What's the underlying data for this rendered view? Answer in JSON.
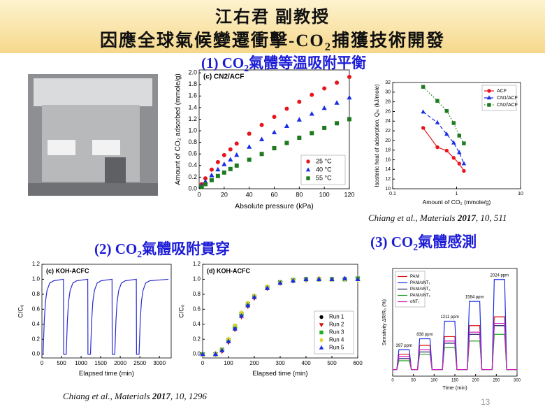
{
  "slide": {
    "presenter": "江右君 副教授",
    "title": [
      "因應全球氣候變遷衝擊-CO",
      "2",
      "捕獲技術開發"
    ],
    "sections": [
      [
        "(1) CO",
        "2",
        "氣體等溫吸附平衡"
      ],
      [
        "(2) CO",
        "2",
        "氣體吸附貫穿"
      ],
      [
        "(3) CO",
        "2",
        "氣體感測"
      ]
    ],
    "citations": [
      [
        "Chiang et al., Materials ",
        "2017",
        ", 10, 511"
      ],
      [
        "Chiang et al., Materials ",
        "2017",
        ", 10, 1296"
      ]
    ],
    "page_number": 13
  },
  "chart_data": [
    {
      "type": "scatter",
      "annotation": "(c) CN2/ACF",
      "x_label": "Absolute pressure (kPa)",
      "y_label": "Amount of CO₂ adsorbed (mmole/g)",
      "x": [
        2,
        5,
        10,
        15,
        20,
        25,
        30,
        40,
        50,
        60,
        70,
        80,
        90,
        100,
        110,
        120
      ],
      "series": [
        {
          "name": "25 °C",
          "color": "#e8141c",
          "marker": "circle",
          "values": [
            0.08,
            0.18,
            0.33,
            0.46,
            0.58,
            0.68,
            0.78,
            0.95,
            1.1,
            1.24,
            1.38,
            1.5,
            1.62,
            1.73,
            1.83,
            1.93
          ]
        },
        {
          "name": "40 °C",
          "color": "#1a2ee6",
          "marker": "triangle",
          "values": [
            0.05,
            0.12,
            0.23,
            0.33,
            0.42,
            0.5,
            0.58,
            0.72,
            0.85,
            0.97,
            1.08,
            1.19,
            1.29,
            1.39,
            1.48,
            1.57
          ]
        },
        {
          "name": "55 °C",
          "color": "#1e7a1e",
          "marker": "square",
          "values": [
            0.03,
            0.08,
            0.15,
            0.22,
            0.28,
            0.34,
            0.4,
            0.5,
            0.6,
            0.7,
            0.79,
            0.88,
            0.96,
            1.05,
            1.13,
            1.2
          ]
        }
      ],
      "xlim": [
        0,
        120
      ],
      "xticks": [
        0,
        20,
        40,
        60,
        80,
        100,
        120
      ],
      "ylim": [
        0,
        2.05
      ],
      "yticks": [
        {
          "value": 0,
          "label": "0.0"
        },
        0.2,
        0.4,
        0.6,
        0.8,
        {
          "value": 1,
          "label": "1.0"
        },
        1.2,
        1.4,
        1.6,
        1.8,
        {
          "value": 2,
          "label": "2.0"
        }
      ],
      "legend": "lower right"
    },
    {
      "type": "line",
      "x_label": "Amount of CO₂ (mmole/g)",
      "y_label": "Isosteric heat of adsorption, Qₛₜ (kJ/mole)",
      "x": [
        0.3,
        0.5,
        0.7,
        0.9,
        1.1,
        1.3
      ],
      "xscale": "log",
      "series": [
        {
          "name": "ACF",
          "color": "#e8141c",
          "marker": "circle",
          "dash": "solid",
          "values": [
            22.6,
            18.6,
            17.9,
            16.4,
            15.2,
            13.7
          ]
        },
        {
          "name": "CN1/ACF",
          "color": "#1a2ee6",
          "marker": "triangle",
          "dash": "dashed",
          "values": [
            25.9,
            23.7,
            21.3,
            19.5,
            17.5,
            15.2
          ]
        },
        {
          "name": "CN2/ACF",
          "color": "#1e7a1e",
          "marker": "square",
          "dash": "dotted",
          "values": [
            31.1,
            28.2,
            26.1,
            23.6,
            21.0,
            19.4
          ]
        }
      ],
      "xlim": [
        0.1,
        10
      ],
      "xticks": [
        0.1,
        1,
        10
      ],
      "ylim": [
        10,
        32
      ],
      "yticks": [
        10,
        12,
        14,
        16,
        18,
        20,
        22,
        24,
        26,
        28,
        30,
        32
      ],
      "legend": "upper right"
    },
    {
      "type": "line",
      "annotation": "(c) KOH-ACFC",
      "x_label": "Elapsed time (min)",
      "y_label": "C/C₀",
      "x": [
        0,
        30,
        60,
        90,
        130,
        200,
        300,
        550,
        555,
        620,
        650,
        680,
        720,
        790,
        890,
        1170,
        1175,
        1240,
        1270,
        1300,
        1340,
        1410,
        1510,
        1790,
        1795,
        1860,
        1890,
        1920,
        1960,
        2030,
        2130,
        2410,
        2415,
        2480,
        2510,
        2540,
        2580,
        2650,
        2750,
        3230
      ],
      "series": [
        {
          "color": "#2b2bd0",
          "dash": "solid",
          "values": [
            0,
            0,
            0.45,
            0.7,
            0.85,
            0.95,
            0.98,
            1.0,
            0,
            0,
            0.45,
            0.7,
            0.85,
            0.95,
            0.98,
            1.0,
            0,
            0,
            0.45,
            0.7,
            0.85,
            0.95,
            0.98,
            1.0,
            0,
            0,
            0.45,
            0.7,
            0.85,
            0.95,
            0.98,
            1.0,
            0,
            0,
            0.45,
            0.7,
            0.85,
            0.95,
            0.98,
            1.0
          ]
        }
      ],
      "xlim": [
        0,
        3300
      ],
      "xticks": [
        0,
        500,
        1000,
        1500,
        2000,
        2500,
        3000
      ],
      "ylim": [
        -0.05,
        1.2
      ],
      "yticks": [
        {
          "value": 0,
          "label": "0.0"
        },
        0.2,
        0.4,
        0.6,
        0.8,
        {
          "value": 1,
          "label": "1.0"
        },
        1.2
      ]
    },
    {
      "type": "scatter",
      "annotation": "(d) KOH-ACFC",
      "x_label": "Elapsed time (min)",
      "y_label": "C/C₀",
      "x": [
        0,
        50,
        75,
        100,
        125,
        150,
        175,
        200,
        250,
        300,
        350,
        400,
        450,
        500,
        550,
        600
      ],
      "series": [
        {
          "name": "Run 1",
          "color": "#000000",
          "marker": "circle",
          "values": [
            0,
            0,
            0.05,
            0.18,
            0.35,
            0.52,
            0.65,
            0.76,
            0.88,
            0.95,
            0.98,
            1.0,
            1.0,
            1.0,
            1.0,
            1.0
          ]
        },
        {
          "name": "Run 2",
          "color": "#d01010",
          "marker": "triangle-down",
          "values": [
            0,
            0,
            0.04,
            0.16,
            0.33,
            0.5,
            0.64,
            0.75,
            0.88,
            0.95,
            0.98,
            0.99,
            1.0,
            1.0,
            1.0,
            1.0
          ]
        },
        {
          "name": "Run 3",
          "color": "#22b022",
          "marker": "square",
          "values": [
            0,
            0,
            0.06,
            0.19,
            0.37,
            0.54,
            0.67,
            0.77,
            0.89,
            0.96,
            0.99,
            1.0,
            1.0,
            1.0,
            1.0,
            1.01
          ]
        },
        {
          "name": "Run 4",
          "color": "#e0d020",
          "marker": "diamond",
          "values": [
            0,
            0.01,
            0.06,
            0.2,
            0.38,
            0.55,
            0.68,
            0.78,
            0.9,
            0.96,
            0.99,
            1.0,
            1.01,
            1.0,
            1.0,
            1.0
          ]
        },
        {
          "name": "Run 5",
          "color": "#1a2ee6",
          "marker": "triangle",
          "values": [
            0,
            0,
            0.05,
            0.17,
            0.34,
            0.51,
            0.65,
            0.76,
            0.88,
            0.95,
            0.98,
            1.0,
            1.0,
            1.0,
            1.01,
            1.0
          ]
        }
      ],
      "xlim": [
        0,
        600
      ],
      "xticks": [
        0,
        100,
        200,
        300,
        400,
        500,
        600
      ],
      "ylim": [
        -0.05,
        1.2
      ],
      "yticks": [
        {
          "value": 0,
          "label": "0.0"
        },
        0.2,
        0.4,
        0.6,
        0.8,
        {
          "value": 1,
          "label": "1.0"
        },
        1.2
      ],
      "legend": "lower right"
    },
    {
      "type": "line",
      "x_label": "Time (min)",
      "y_label": "Sensitivity ΔR/R₀ (%)",
      "annotations": [
        "397 ppm",
        "838 ppm",
        "1211 ppm",
        "1584 ppm",
        "2024 ppm"
      ],
      "x": [
        0,
        10,
        15,
        40,
        45,
        60,
        65,
        90,
        95,
        120,
        125,
        150,
        155,
        180,
        185,
        210,
        215,
        240,
        245,
        270,
        275,
        300
      ],
      "series": [
        {
          "name": "PANI",
          "color": "#e01010",
          "dash": "solid",
          "values": [
            0,
            0,
            0.7,
            0.7,
            0,
            0,
            1.1,
            1.1,
            0,
            0,
            1.5,
            1.5,
            0,
            0,
            2.0,
            2.0,
            0,
            0,
            2.4,
            2.4,
            0,
            0
          ]
        },
        {
          "name": "PANI/oNT₁",
          "color": "#1a2ee6",
          "dash": "solid",
          "values": [
            0,
            0,
            0.9,
            0.9,
            0,
            0,
            1.4,
            1.4,
            0,
            0,
            2.2,
            2.2,
            0,
            0,
            3.1,
            3.1,
            0,
            0,
            4.1,
            4.1,
            0,
            0
          ]
        },
        {
          "name": "PANI/oNT₂",
          "color": "#1a1a50",
          "dash": "solid",
          "values": [
            0,
            0,
            0.5,
            0.5,
            0,
            0,
            0.8,
            0.8,
            0,
            0,
            1.2,
            1.2,
            0,
            0,
            1.6,
            1.6,
            0,
            0,
            2.0,
            2.0,
            0,
            0
          ]
        },
        {
          "name": "PANI/oNT₃",
          "color": "#20a020",
          "dash": "solid",
          "values": [
            0,
            0,
            0.4,
            0.4,
            0,
            0,
            0.7,
            0.7,
            0,
            0,
            1.0,
            1.0,
            0,
            0,
            1.3,
            1.3,
            0,
            0,
            1.6,
            1.6,
            0,
            0
          ]
        },
        {
          "name": "oNT₁",
          "color": "#d020c0",
          "dash": "solid",
          "values": [
            0,
            0,
            0.6,
            0.6,
            0,
            0,
            0.9,
            0.9,
            0,
            0,
            1.3,
            1.3,
            0,
            0,
            1.7,
            1.7,
            0,
            0,
            2.1,
            2.1,
            0,
            0
          ]
        }
      ],
      "xlim": [
        0,
        300
      ],
      "xticks": [
        0,
        50,
        100,
        150,
        200,
        250,
        300
      ],
      "ylim": [
        -0.3,
        4.6
      ],
      "legend": "upper left"
    }
  ]
}
